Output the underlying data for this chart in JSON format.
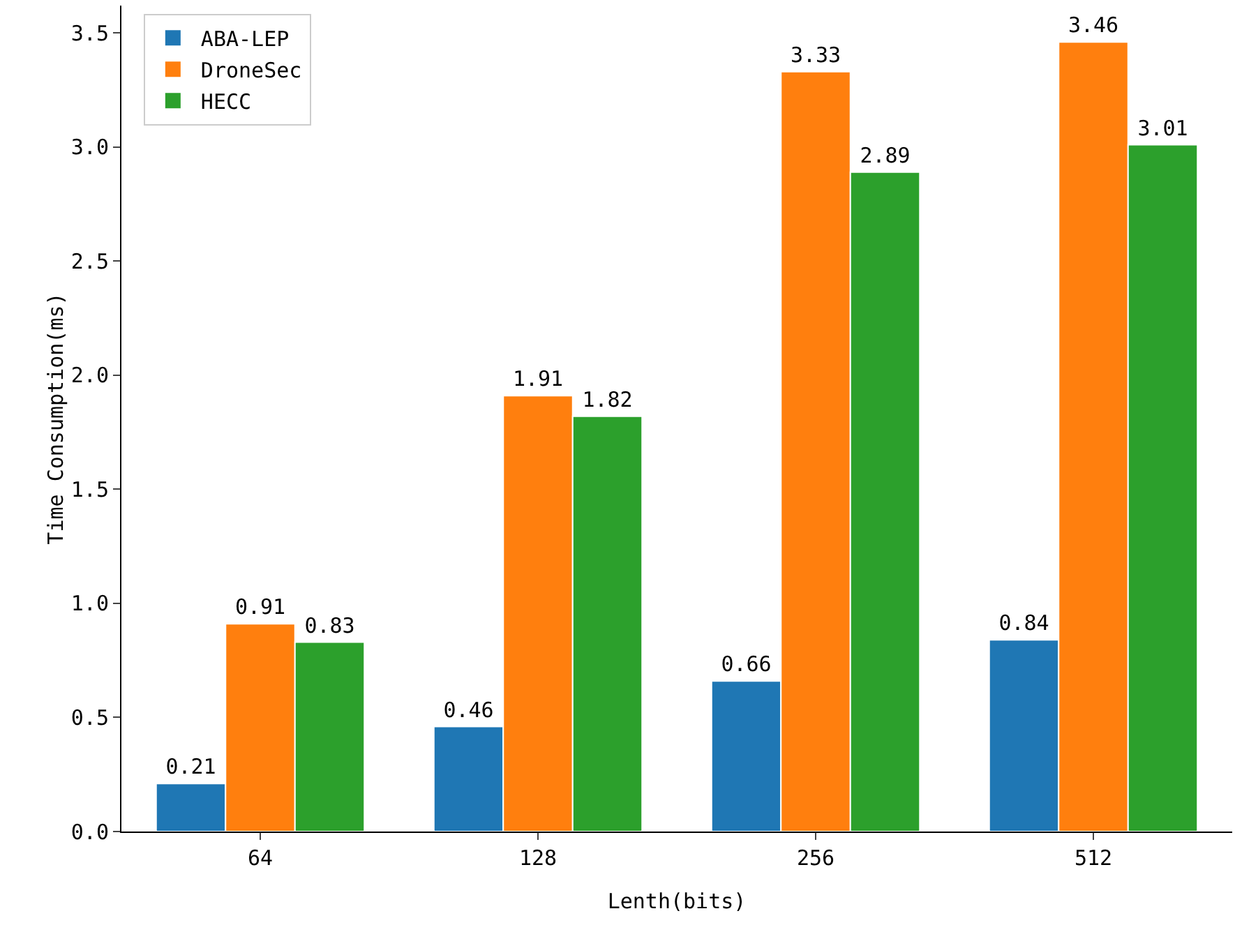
{
  "chart_data": {
    "type": "bar",
    "xlabel": "Lenth(bits)",
    "ylabel": "Time Consumption(ms)",
    "categories": [
      "64",
      "128",
      "256",
      "512"
    ],
    "series": [
      {
        "name": "ABA-LEP",
        "color": "#1f77b4",
        "values": [
          0.21,
          0.46,
          0.66,
          0.84
        ]
      },
      {
        "name": "DroneSec",
        "color": "#ff7f0e",
        "values": [
          0.91,
          1.91,
          3.33,
          3.46
        ]
      },
      {
        "name": "HECC",
        "color": "#2ca02c",
        "values": [
          0.83,
          1.82,
          2.89,
          3.01
        ]
      }
    ],
    "ylim": [
      0,
      3.62
    ],
    "yticks": [
      {
        "value": 0,
        "label": "0.0"
      },
      {
        "value": 0.5,
        "label": "0.5"
      },
      {
        "value": 1,
        "label": "1.0"
      },
      {
        "value": 1.5,
        "label": "1.5"
      },
      {
        "value": 2,
        "label": "2.0"
      },
      {
        "value": 2.5,
        "label": "2.5"
      },
      {
        "value": 3,
        "label": "3.0"
      },
      {
        "value": 3.5,
        "label": "3.5"
      }
    ],
    "data_labels": true,
    "grid": false,
    "legend": "top left"
  }
}
